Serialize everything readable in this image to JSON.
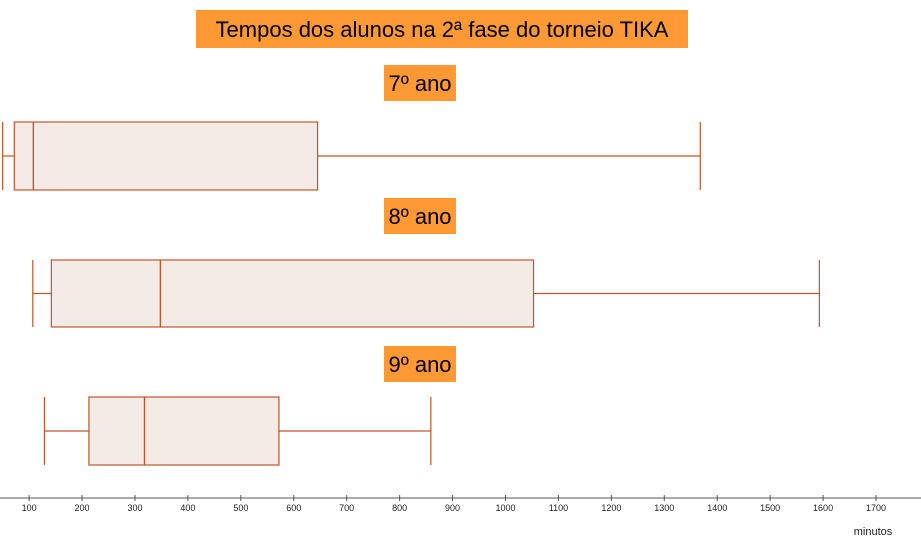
{
  "colors": {
    "label_bg": "#ff9933",
    "box_stroke": "#c0562a",
    "box_fill": "#f5ebe6",
    "axis": "#555555"
  },
  "chart_data": {
    "type": "box",
    "title": "Tempos dos alunos na 2ª fase do torneio TIKA",
    "xlabel": "minutos",
    "xlim": [
      45,
      1785
    ],
    "xticks": [
      100,
      200,
      300,
      400,
      500,
      600,
      700,
      800,
      900,
      1000,
      1100,
      1200,
      1300,
      1400,
      1500,
      1600,
      1700
    ],
    "grid": false,
    "series": [
      {
        "name": "7º ano",
        "min": 50,
        "q1": 72,
        "median": 108,
        "q3": 645,
        "max": 1368
      },
      {
        "name": "8º ano",
        "min": 107,
        "q1": 142,
        "median": 348,
        "q3": 1053,
        "max": 1593
      },
      {
        "name": "9º ano",
        "min": 129,
        "q1": 213,
        "median": 318,
        "q3": 572,
        "max": 859
      }
    ]
  }
}
